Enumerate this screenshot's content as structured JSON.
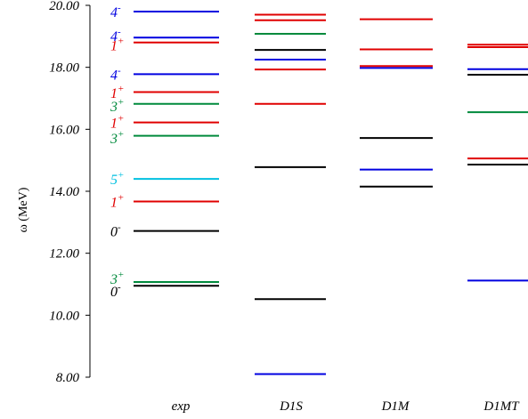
{
  "chart_data": {
    "type": "level-diagram",
    "ylabel": "ω (MeV)",
    "ylim": [
      8.0,
      20.0
    ],
    "yticks": [
      "8.00",
      "10.00",
      "12.00",
      "14.00",
      "16.00",
      "18.00",
      "20.00"
    ],
    "categories": [
      "exp",
      "D1S",
      "D1M",
      "D1MT"
    ],
    "color_map": {
      "black": "#000000",
      "red": "#e00000",
      "green": "#008a3c",
      "blue": "#0000e0",
      "cyan": "#00c0e0"
    },
    "levels": {
      "exp": [
        {
          "e": 10.95,
          "c": "black"
        },
        {
          "e": 11.07,
          "c": "green"
        },
        {
          "e": 12.72,
          "c": "black"
        },
        {
          "e": 13.67,
          "c": "red"
        },
        {
          "e": 14.4,
          "c": "cyan"
        },
        {
          "e": 15.79,
          "c": "green"
        },
        {
          "e": 16.22,
          "c": "red"
        },
        {
          "e": 16.82,
          "c": "green"
        },
        {
          "e": 17.2,
          "c": "red"
        },
        {
          "e": 17.78,
          "c": "blue"
        },
        {
          "e": 18.8,
          "c": "red"
        },
        {
          "e": 18.96,
          "c": "blue"
        },
        {
          "e": 19.8,
          "c": "blue"
        }
      ],
      "D1S": [
        {
          "e": 8.1,
          "c": "blue"
        },
        {
          "e": 10.52,
          "c": "black"
        },
        {
          "e": 14.78,
          "c": "black"
        },
        {
          "e": 16.82,
          "c": "red"
        },
        {
          "e": 17.93,
          "c": "red"
        },
        {
          "e": 18.25,
          "c": "blue"
        },
        {
          "e": 18.56,
          "c": "black"
        },
        {
          "e": 19.08,
          "c": "green"
        },
        {
          "e": 19.52,
          "c": "red"
        },
        {
          "e": 19.7,
          "c": "red"
        }
      ],
      "D1M": [
        {
          "e": 14.15,
          "c": "black"
        },
        {
          "e": 14.7,
          "c": "blue"
        },
        {
          "e": 15.72,
          "c": "black"
        },
        {
          "e": 17.98,
          "c": "blue"
        },
        {
          "e": 18.04,
          "c": "red"
        },
        {
          "e": 18.58,
          "c": "red"
        },
        {
          "e": 19.55,
          "c": "red"
        }
      ],
      "D1MT": [
        {
          "e": 11.12,
          "c": "blue"
        },
        {
          "e": 14.86,
          "c": "black"
        },
        {
          "e": 15.06,
          "c": "red"
        },
        {
          "e": 16.55,
          "c": "green"
        },
        {
          "e": 17.76,
          "c": "black"
        },
        {
          "e": 17.94,
          "c": "blue"
        },
        {
          "e": 18.65,
          "c": "red"
        },
        {
          "e": 18.73,
          "c": "red"
        }
      ]
    },
    "exp_labels": [
      {
        "j": "0",
        "p": "-",
        "e": 10.78,
        "c": "black"
      },
      {
        "j": "3",
        "p": "+",
        "e": 11.18,
        "c": "green"
      },
      {
        "j": "0",
        "p": "-",
        "e": 12.72,
        "c": "black"
      },
      {
        "j": "1",
        "p": "+",
        "e": 13.67,
        "c": "red"
      },
      {
        "j": "5",
        "p": "+",
        "e": 14.4,
        "c": "cyan"
      },
      {
        "j": "3",
        "p": "+",
        "e": 15.72,
        "c": "green"
      },
      {
        "j": "1",
        "p": "+",
        "e": 16.22,
        "c": "red"
      },
      {
        "j": "3",
        "p": "+",
        "e": 16.75,
        "c": "green"
      },
      {
        "j": "1",
        "p": "+",
        "e": 17.18,
        "c": "red"
      },
      {
        "j": "4",
        "p": "-",
        "e": 17.78,
        "c": "blue"
      },
      {
        "j": "1",
        "p": "+",
        "e": 18.72,
        "c": "red"
      },
      {
        "j": "4",
        "p": "-",
        "e": 19.02,
        "c": "blue"
      },
      {
        "j": "4",
        "p": "-",
        "e": 19.8,
        "c": "blue"
      }
    ]
  }
}
